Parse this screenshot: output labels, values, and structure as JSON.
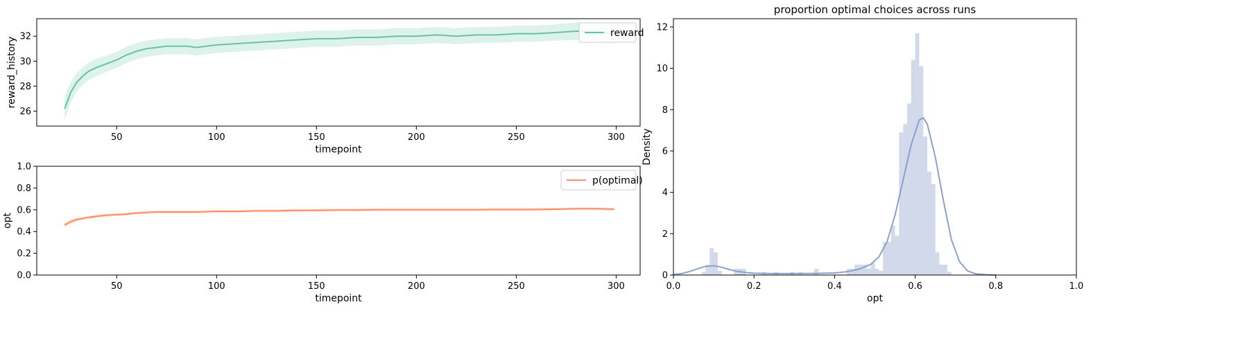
{
  "chart_data": [
    {
      "type": "line",
      "xlabel": "timepoint",
      "ylabel": "reward_history",
      "xlim": [
        10,
        312
      ],
      "ylim": [
        24.8,
        33.4
      ],
      "xticks": [
        50,
        100,
        150,
        200,
        250,
        300
      ],
      "yticks": [
        26,
        28,
        30,
        32
      ],
      "legend": "top-right",
      "series": [
        {
          "name": "reward",
          "color": "#66c2a5",
          "band_color": "#66c2a5",
          "x": [
            24,
            27,
            30,
            33,
            36,
            40,
            45,
            50,
            55,
            60,
            65,
            70,
            75,
            80,
            85,
            90,
            95,
            100,
            110,
            120,
            130,
            140,
            150,
            160,
            170,
            180,
            190,
            200,
            210,
            220,
            230,
            240,
            250,
            260,
            270,
            280,
            290,
            299
          ],
          "y": [
            26.2,
            27.5,
            28.3,
            28.8,
            29.2,
            29.5,
            29.8,
            30.1,
            30.5,
            30.8,
            31.0,
            31.1,
            31.2,
            31.2,
            31.2,
            31.1,
            31.2,
            31.3,
            31.4,
            31.5,
            31.6,
            31.7,
            31.8,
            31.8,
            31.9,
            31.9,
            32.0,
            32.0,
            32.1,
            32.0,
            32.1,
            32.1,
            32.2,
            32.2,
            32.3,
            32.4,
            32.4,
            32.2
          ],
          "band_halfwidth": [
            0.9,
            0.8,
            0.75,
            0.7,
            0.7,
            0.7,
            0.65,
            0.65,
            0.65,
            0.65,
            0.65,
            0.65,
            0.65,
            0.65,
            0.65,
            0.65,
            0.65,
            0.65,
            0.65,
            0.65,
            0.65,
            0.65,
            0.65,
            0.65,
            0.65,
            0.65,
            0.65,
            0.65,
            0.65,
            0.65,
            0.65,
            0.65,
            0.65,
            0.65,
            0.65,
            0.7,
            0.7,
            0.7
          ]
        }
      ]
    },
    {
      "type": "line",
      "xlabel": "timepoint",
      "ylabel": "opt",
      "xlim": [
        10,
        312
      ],
      "ylim": [
        0,
        1
      ],
      "xticks": [
        50,
        100,
        150,
        200,
        250,
        300
      ],
      "yticks": [
        0.0,
        0.2,
        0.4,
        0.6,
        0.8,
        1.0
      ],
      "legend": "top-right",
      "series": [
        {
          "name": "p(optimal)",
          "color": "#fc8d62",
          "band_color": "#fc8d62",
          "x": [
            24,
            27,
            30,
            33,
            36,
            40,
            45,
            50,
            55,
            60,
            65,
            70,
            75,
            80,
            90,
            100,
            110,
            120,
            130,
            140,
            150,
            160,
            170,
            180,
            190,
            200,
            210,
            220,
            230,
            240,
            250,
            260,
            270,
            280,
            290,
            299
          ],
          "y": [
            0.46,
            0.49,
            0.51,
            0.52,
            0.53,
            0.54,
            0.55,
            0.555,
            0.56,
            0.57,
            0.575,
            0.58,
            0.58,
            0.58,
            0.58,
            0.585,
            0.585,
            0.59,
            0.59,
            0.595,
            0.595,
            0.597,
            0.597,
            0.6,
            0.6,
            0.6,
            0.6,
            0.6,
            0.6,
            0.603,
            0.603,
            0.603,
            0.605,
            0.61,
            0.61,
            0.605
          ],
          "band_halfwidth": [
            0.025,
            0.02,
            0.018,
            0.016,
            0.015,
            0.015,
            0.014,
            0.014,
            0.013,
            0.013,
            0.013,
            0.013,
            0.013,
            0.013,
            0.013,
            0.013,
            0.013,
            0.013,
            0.013,
            0.013,
            0.013,
            0.013,
            0.013,
            0.013,
            0.013,
            0.013,
            0.013,
            0.013,
            0.013,
            0.013,
            0.013,
            0.013,
            0.013,
            0.013,
            0.013,
            0.013
          ]
        }
      ]
    },
    {
      "type": "bar",
      "title": "proportion optimal choices across runs",
      "xlabel": "opt",
      "ylabel": "Density",
      "xlim": [
        0,
        1
      ],
      "ylim": [
        0,
        12.4
      ],
      "xticks": [
        0.0,
        0.2,
        0.4,
        0.6,
        0.8,
        1.0
      ],
      "yticks": [
        0,
        2,
        4,
        6,
        8,
        10,
        12
      ],
      "hist_color": "#8da0cb",
      "kde_color": "#8da0cb",
      "bin_width": 0.01,
      "bins_left": [
        0.07,
        0.08,
        0.09,
        0.1,
        0.11,
        0.15,
        0.16,
        0.17,
        0.22,
        0.25,
        0.29,
        0.31,
        0.35,
        0.43,
        0.44,
        0.45,
        0.46,
        0.47,
        0.48,
        0.49,
        0.5,
        0.51,
        0.52,
        0.53,
        0.54,
        0.55,
        0.56,
        0.57,
        0.58,
        0.59,
        0.6,
        0.61,
        0.62,
        0.63,
        0.64,
        0.65,
        0.66,
        0.67,
        0.68
      ],
      "bin_density": [
        0.15,
        0.5,
        1.3,
        1.1,
        0.2,
        0.3,
        0.3,
        0.3,
        0.15,
        0.15,
        0.15,
        0.15,
        0.3,
        0.3,
        0.3,
        0.5,
        0.5,
        0.5,
        0.3,
        0.6,
        0.3,
        0.2,
        1.6,
        1.6,
        2.4,
        1.9,
        6.9,
        7.3,
        8.3,
        10.4,
        11.7,
        10.1,
        6.7,
        5.0,
        4.4,
        1.1,
        0.5,
        0.5,
        0.15
      ],
      "kde_x": [
        0.0,
        0.02,
        0.04,
        0.06,
        0.08,
        0.1,
        0.12,
        0.14,
        0.16,
        0.18,
        0.2,
        0.25,
        0.3,
        0.35,
        0.4,
        0.43,
        0.46,
        0.49,
        0.51,
        0.53,
        0.55,
        0.57,
        0.59,
        0.61,
        0.62,
        0.63,
        0.65,
        0.67,
        0.69,
        0.71,
        0.73,
        0.75,
        0.78,
        0.8
      ],
      "kde_y": [
        0.02,
        0.07,
        0.17,
        0.3,
        0.42,
        0.45,
        0.38,
        0.26,
        0.17,
        0.12,
        0.09,
        0.07,
        0.07,
        0.08,
        0.1,
        0.16,
        0.28,
        0.52,
        0.88,
        1.6,
        2.9,
        4.6,
        6.3,
        7.5,
        7.6,
        7.3,
        5.7,
        3.6,
        1.7,
        0.65,
        0.2,
        0.06,
        0.01,
        0.0
      ]
    }
  ]
}
